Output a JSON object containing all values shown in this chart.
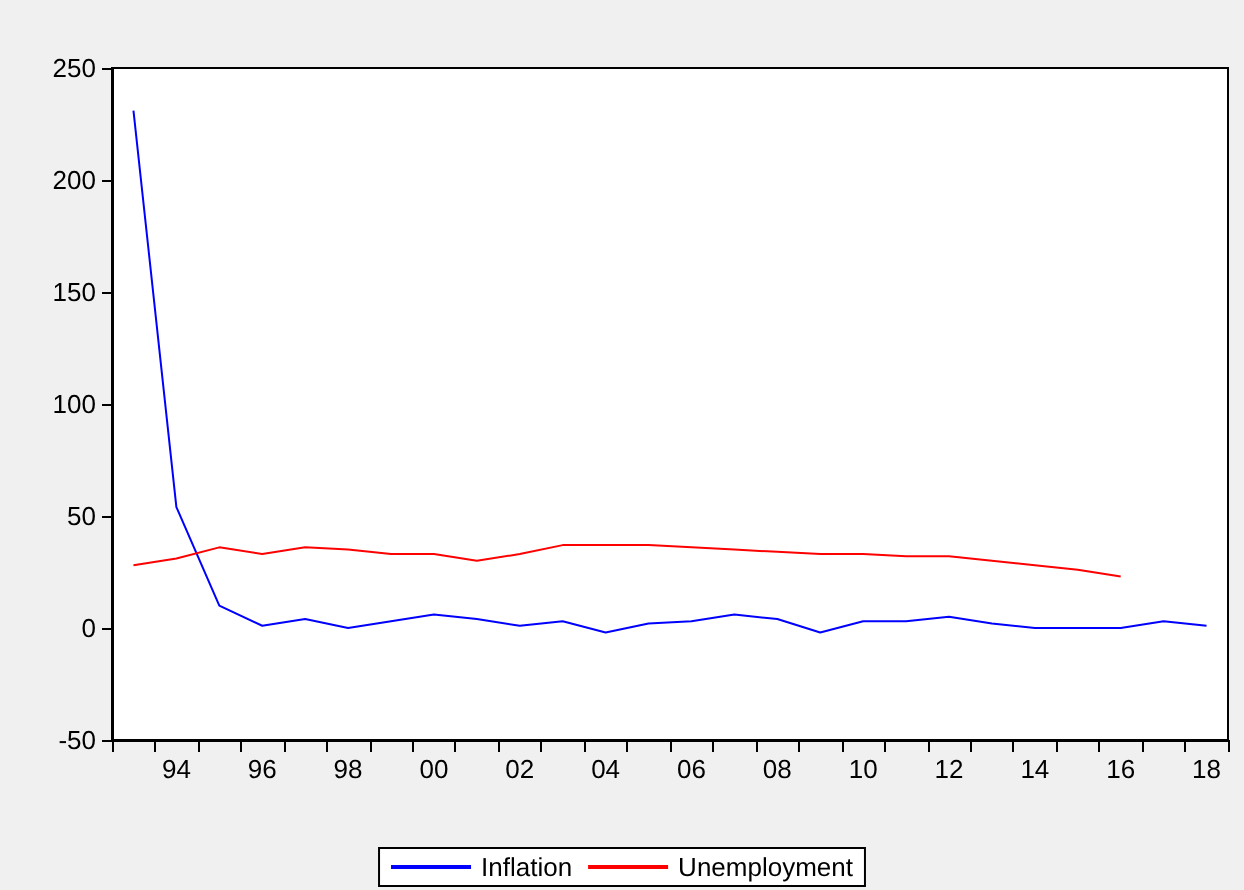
{
  "chart_data": {
    "type": "line",
    "categories": [
      null,
      "94",
      null,
      "96",
      null,
      "98",
      null,
      "00",
      null,
      "02",
      null,
      "04",
      null,
      "06",
      null,
      "08",
      null,
      "10",
      null,
      "12",
      null,
      "14",
      null,
      "16",
      null,
      "18"
    ],
    "series": [
      {
        "name": "Inflation",
        "color": "#0000ff",
        "values": [
          231,
          54,
          10,
          1,
          4,
          0,
          3,
          6,
          4,
          1,
          3,
          -2,
          2,
          3,
          6,
          4,
          -2,
          3,
          3,
          5,
          2,
          0,
          0,
          0,
          3,
          1
        ]
      },
      {
        "name": "Unemployment",
        "color": "#ff0000",
        "values": [
          28,
          31,
          36,
          33,
          36,
          35,
          33,
          33,
          30,
          33,
          37,
          37,
          37,
          36,
          35,
          34,
          33,
          33,
          32,
          32,
          30,
          28,
          26,
          23,
          null,
          null
        ]
      }
    ],
    "ylim": [
      -50,
      250
    ],
    "yticks": [
      -50,
      0,
      50,
      100,
      150,
      200,
      250
    ],
    "grid": false,
    "legend": "bottom",
    "marker": "none",
    "line_style": "solid"
  }
}
